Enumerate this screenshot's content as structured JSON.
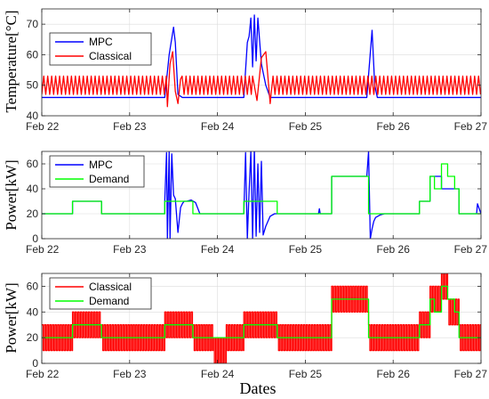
{
  "xlabel": "Dates",
  "colors": {
    "mpc": "#0000ff",
    "classical": "#ff0000",
    "demand": "#00ff00",
    "grid": "#dcdcdc",
    "axis": "#262626"
  },
  "chart_data": [
    {
      "type": "line",
      "ylabel": "Temperature[°C]",
      "xlim": [
        22,
        27
      ],
      "ylim": [
        40,
        75
      ],
      "yticks": [
        40,
        50,
        60,
        70
      ],
      "xticks": [
        22,
        23,
        24,
        25,
        26,
        27
      ],
      "xticklabels": [
        "Feb 22",
        "Feb 23",
        "Feb 24",
        "Feb 25",
        "Feb 26",
        "Feb 27"
      ],
      "grid": true,
      "legend": "top-left",
      "series": [
        {
          "name": "MPC",
          "color": "#0000ff",
          "x": [
            22.0,
            23.4,
            23.45,
            23.5,
            23.52,
            23.55,
            23.6,
            23.64,
            24.3,
            24.34,
            24.36,
            24.38,
            24.4,
            24.42,
            24.44,
            24.46,
            24.5,
            24.55,
            24.6,
            25.7,
            25.76,
            25.79,
            25.82,
            27.0
          ],
          "y": [
            46,
            46,
            60,
            69,
            64,
            47,
            46,
            46,
            46,
            64,
            66,
            72,
            56,
            73,
            58,
            72,
            57,
            50,
            46,
            46,
            68,
            50,
            46,
            46
          ]
        },
        {
          "name": "Classical",
          "color": "#ff0000",
          "period": 0.045,
          "low": 47,
          "high": 53,
          "x_start": 22.0,
          "x_end": 27.0,
          "disturbances": [
            {
              "x": [
                23.43,
                23.46,
                23.49,
                23.52,
                23.55,
                23.58
              ],
              "y": [
                43,
                57,
                61,
                48,
                44,
                52
              ]
            },
            {
              "x": [
                24.4,
                24.45,
                24.5,
                24.55,
                24.6
              ],
              "y": [
                53,
                45,
                59,
                61,
                44
              ]
            }
          ]
        }
      ]
    },
    {
      "type": "line",
      "ylabel": "Power[kW]",
      "xlim": [
        22,
        27
      ],
      "ylim": [
        0,
        70
      ],
      "yticks": [
        0,
        20,
        40,
        60
      ],
      "xticks": [
        22,
        23,
        24,
        25,
        26,
        27
      ],
      "xticklabels": [
        "Feb 22",
        "Feb 23",
        "Feb 24",
        "Feb 25",
        "Feb 26",
        "Feb 27"
      ],
      "grid": true,
      "legend": "top-left",
      "series": [
        {
          "name": "MPC",
          "color": "#0000ff",
          "x": [
            22.0,
            22.35,
            22.35,
            22.68,
            22.68,
            23.4,
            23.4,
            23.42,
            23.43,
            23.45,
            23.46,
            23.48,
            23.5,
            23.52,
            23.55,
            23.58,
            23.6,
            23.62,
            23.65,
            23.7,
            23.75,
            23.8,
            24.3,
            24.32,
            24.34,
            24.36,
            24.38,
            24.4,
            24.42,
            24.44,
            24.46,
            24.48,
            24.5,
            24.52,
            24.55,
            24.6,
            24.65,
            24.7,
            25.15,
            25.16,
            25.17,
            25.3,
            25.3,
            25.7,
            25.72,
            25.74,
            25.76,
            25.78,
            25.8,
            25.85,
            25.9,
            26.0,
            26.3,
            26.3,
            26.42,
            26.42,
            26.55,
            26.55,
            26.75,
            26.75,
            26.88,
            26.95,
            26.96,
            27.0
          ],
          "y": [
            20,
            20,
            30,
            30,
            20,
            20,
            30,
            69,
            0,
            70,
            0,
            68,
            35,
            32,
            5,
            25,
            28,
            30,
            30,
            31,
            29,
            20,
            20,
            69,
            0,
            38,
            70,
            0,
            72,
            2,
            60,
            5,
            62,
            3,
            10,
            18,
            20,
            20,
            20,
            24,
            20,
            20,
            50,
            50,
            70,
            0,
            8,
            14,
            17,
            19,
            20,
            20,
            20,
            30,
            30,
            50,
            50,
            40,
            40,
            20,
            20,
            20,
            28,
            20
          ]
        },
        {
          "name": "Demand",
          "color": "#00ff00",
          "x": [
            22.0,
            22.35,
            22.35,
            22.68,
            22.68,
            23.4,
            23.4,
            23.72,
            23.72,
            24.3,
            24.3,
            24.68,
            24.68,
            25.3,
            25.3,
            25.72,
            25.72,
            26.3,
            26.3,
            26.42,
            26.42,
            26.47,
            26.47,
            26.55,
            26.55,
            26.62,
            26.62,
            26.7,
            26.7,
            26.75,
            26.75,
            27.0
          ],
          "y": [
            20,
            20,
            30,
            30,
            20,
            20,
            30,
            30,
            20,
            20,
            30,
            30,
            20,
            20,
            50,
            50,
            20,
            20,
            30,
            30,
            50,
            50,
            40,
            40,
            60,
            60,
            50,
            50,
            40,
            40,
            20,
            20
          ]
        }
      ]
    },
    {
      "type": "line",
      "ylabel": "Power[kW]",
      "xlim": [
        22,
        27
      ],
      "ylim": [
        0,
        70
      ],
      "yticks": [
        0,
        20,
        40,
        60
      ],
      "xticks": [
        22,
        23,
        24,
        25,
        26,
        27
      ],
      "xticklabels": [
        "Feb 22",
        "Feb 23",
        "Feb 24",
        "Feb 25",
        "Feb 26",
        "Feb 27"
      ],
      "grid": true,
      "legend": "top-left",
      "series": [
        {
          "name": "Classical",
          "color": "#ff0000",
          "mode": "on-off",
          "period": 0.03,
          "segments": [
            {
              "x": [
                22.0,
                22.35
              ],
              "low": 10,
              "high": 30
            },
            {
              "x": [
                22.35,
                22.68
              ],
              "low": 20,
              "high": 40
            },
            {
              "x": [
                22.68,
                23.4
              ],
              "low": 10,
              "high": 30
            },
            {
              "x": [
                23.4,
                23.72
              ],
              "low": 20,
              "high": 40
            },
            {
              "x": [
                23.72,
                23.95
              ],
              "low": 10,
              "high": 30
            },
            {
              "x": [
                23.95,
                24.1
              ],
              "low": 0,
              "high": 20
            },
            {
              "x": [
                24.1,
                24.3
              ],
              "low": 10,
              "high": 30
            },
            {
              "x": [
                24.3,
                24.68
              ],
              "low": 20,
              "high": 40
            },
            {
              "x": [
                24.68,
                25.3
              ],
              "low": 10,
              "high": 30
            },
            {
              "x": [
                25.3,
                25.72
              ],
              "low": 40,
              "high": 60
            },
            {
              "x": [
                25.72,
                26.3
              ],
              "low": 10,
              "high": 30
            },
            {
              "x": [
                26.3,
                26.42
              ],
              "low": 20,
              "high": 40
            },
            {
              "x": [
                26.42,
                26.55
              ],
              "low": 40,
              "high": 60
            },
            {
              "x": [
                26.55,
                26.62
              ],
              "low": 50,
              "high": 70
            },
            {
              "x": [
                26.62,
                26.75
              ],
              "low": 30,
              "high": 50
            },
            {
              "x": [
                26.75,
                27.0
              ],
              "low": 10,
              "high": 30
            }
          ]
        },
        {
          "name": "Demand",
          "color": "#00ff00",
          "x": [
            22.0,
            22.35,
            22.35,
            22.68,
            22.68,
            23.4,
            23.4,
            23.72,
            23.72,
            24.3,
            24.3,
            24.68,
            24.68,
            25.3,
            25.3,
            25.72,
            25.72,
            26.3,
            26.3,
            26.42,
            26.42,
            26.47,
            26.47,
            26.55,
            26.55,
            26.62,
            26.62,
            26.7,
            26.7,
            26.75,
            26.75,
            27.0
          ],
          "y": [
            20,
            20,
            30,
            30,
            20,
            20,
            30,
            30,
            20,
            20,
            30,
            30,
            20,
            20,
            50,
            50,
            20,
            20,
            30,
            30,
            50,
            50,
            40,
            40,
            60,
            60,
            50,
            50,
            40,
            40,
            20,
            20
          ]
        }
      ]
    }
  ]
}
